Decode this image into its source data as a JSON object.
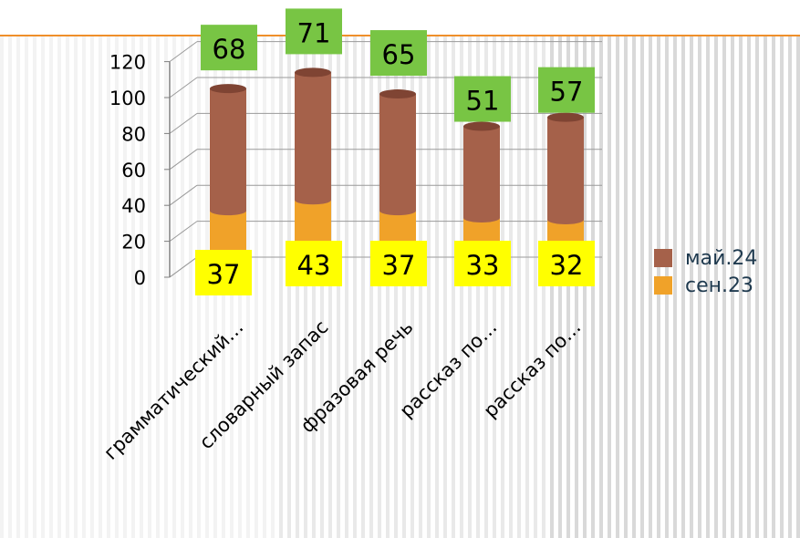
{
  "chart_data": {
    "type": "bar",
    "stacked": true,
    "style": "3d-cylinder",
    "categories": [
      "грамматический…",
      "словарный запас",
      "фразовая речь",
      "рассказ по…",
      "рассказ по…"
    ],
    "series": [
      {
        "name": "сен.23",
        "values": [
          37,
          43,
          37,
          33,
          32
        ],
        "color": "#f0a229",
        "label_bg": "#ffff00"
      },
      {
        "name": "май.24",
        "values": [
          68,
          71,
          65,
          51,
          57
        ],
        "color": "#a5614a",
        "label_bg": "#78c544"
      }
    ],
    "yticks": [
      0,
      20,
      40,
      60,
      80,
      100,
      120
    ],
    "ylim": [
      0,
      120
    ],
    "legend_position": "right",
    "grid": true
  }
}
